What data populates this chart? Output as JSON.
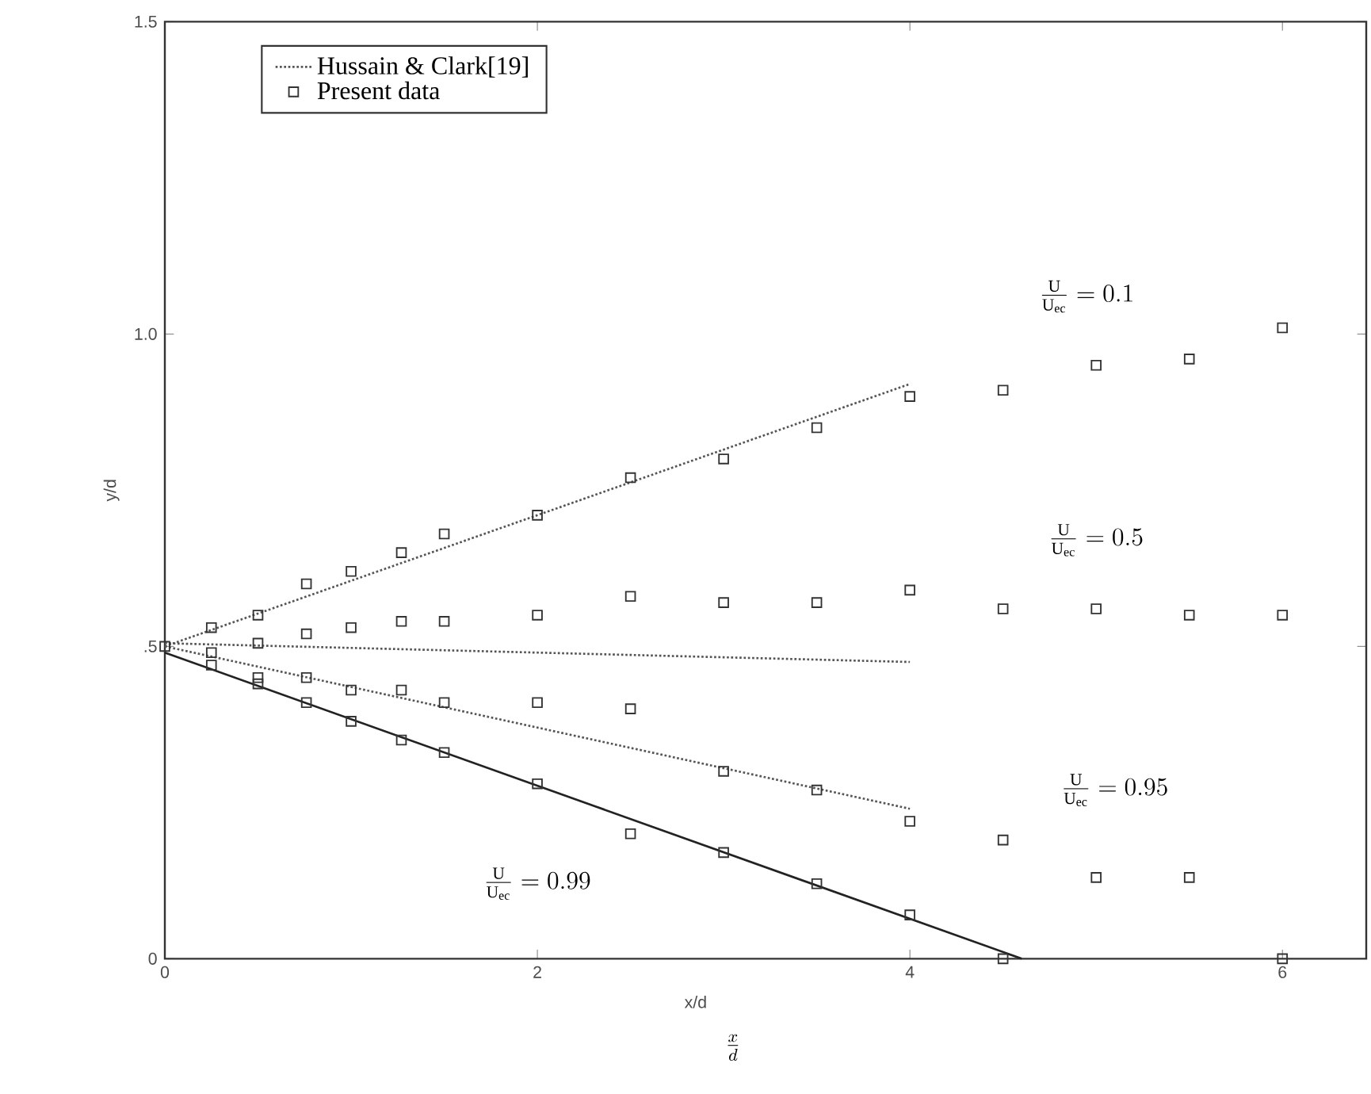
{
  "chart_data": {
    "type": "scatter",
    "xlabel": "x/d",
    "ylabel": "y/d",
    "xlim": [
      0,
      6.45
    ],
    "ylim": [
      0,
      1.5
    ],
    "xticks": [
      0,
      2,
      4,
      6
    ],
    "yticks": [
      0,
      {
        "value": 0.5,
        "label": ".5"
      },
      {
        "value": 1.0,
        "label": "1.0"
      },
      {
        "value": 1.5,
        "label": "1.5"
      }
    ],
    "grid": false,
    "legend": "top left",
    "series": [
      {
        "name": "Hussain & Clark[19]",
        "type": "line",
        "line_style": "dotted",
        "marker": "none",
        "color": "#555555",
        "x": [
          0,
          4
        ],
        "values": [
          0.5,
          0.92
        ]
      },
      {
        "type": "line",
        "line_style": "dotted",
        "marker": "none",
        "color": "#555555",
        "x": [
          0,
          4
        ],
        "values": [
          0.505,
          0.475
        ]
      },
      {
        "type": "line",
        "line_style": "dotted",
        "marker": "none",
        "color": "#555555",
        "x": [
          0,
          4
        ],
        "values": [
          0.5,
          0.24
        ]
      },
      {
        "type": "line",
        "line_style": "solid",
        "marker": "none",
        "color": "#222222",
        "x": [
          0,
          4.6
        ],
        "values": [
          0.49,
          0.0
        ]
      },
      {
        "name": "Present data",
        "marker": "square",
        "color": "#333333",
        "x": [
          0.25,
          0.5,
          0.76,
          1.0,
          1.27,
          1.5,
          2.0,
          2.5,
          3.0,
          3.5,
          4.0,
          4.5,
          5.0,
          5.5,
          6.0,
          0,
          0.25,
          0.5,
          0.76,
          1.0,
          1.27,
          1.5,
          2.0,
          2.5,
          3.0,
          3.5,
          4.0,
          4.5,
          5.0,
          5.5,
          6.0,
          0.5,
          0.76,
          1.0,
          1.27,
          1.5,
          2.0,
          2.5,
          3.0,
          3.5,
          4.0,
          4.5,
          5.0,
          5.5,
          0.25,
          0.5,
          0.76,
          1.0,
          1.27,
          1.5,
          2.0,
          2.5,
          3.0,
          3.5,
          4.0,
          4.5,
          6.0
        ],
        "values": [
          0.53,
          0.55,
          0.6,
          0.62,
          0.65,
          0.68,
          0.71,
          0.77,
          0.8,
          0.85,
          0.9,
          0.91,
          0.95,
          0.96,
          1.01,
          0.5,
          0.49,
          0.505,
          0.52,
          0.53,
          0.54,
          0.54,
          0.55,
          0.58,
          0.57,
          0.57,
          0.59,
          0.56,
          0.56,
          0.55,
          0.55,
          0.45,
          0.45,
          0.43,
          0.43,
          0.41,
          0.41,
          0.4,
          0.3,
          0.27,
          0.22,
          0.19,
          0.13,
          0.13,
          0.47,
          0.44,
          0.41,
          0.38,
          0.35,
          0.33,
          0.28,
          0.2,
          0.17,
          0.12,
          0.07,
          0.0,
          0.0
        ]
      }
    ],
    "annotations": [
      "\\frac{\\mathrm{U}}{\\mathrm{U}_{\\mathrm{ec}}}=0.1",
      "\\frac{\\mathrm{U}}{\\mathrm{U}_{\\mathrm{ec}}}=0.5",
      "\\frac{\\mathrm{U}}{\\mathrm{U}_{\\mathrm{ec}}}=0.95",
      "\\frac{\\mathrm{U}}{\\mathrm{U}_{\\mathrm{ec}}}=0.99",
      "\\frac{x}{d}"
    ]
  }
}
